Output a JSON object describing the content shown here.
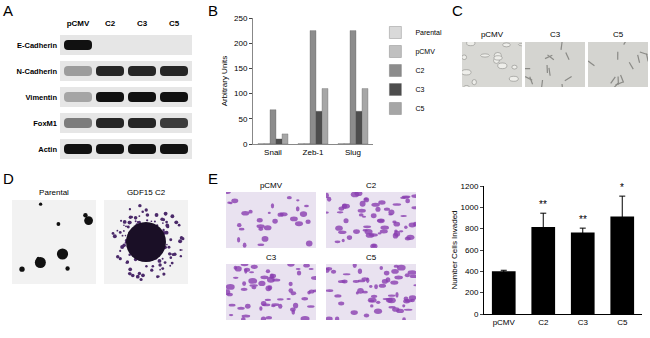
{
  "panel_labels": [
    "A",
    "B",
    "C",
    "D",
    "E"
  ],
  "blot": {
    "lanes": [
      "pCMV",
      "C2",
      "C3",
      "C5"
    ],
    "rows": [
      {
        "protein": "E-Cadherin",
        "signal": [
          1,
          0,
          0,
          0
        ]
      },
      {
        "protein": "N-Cadherin",
        "signal": [
          0.35,
          0.9,
          0.9,
          0.9
        ]
      },
      {
        "protein": "Vimentin",
        "signal": [
          0.3,
          1,
          1,
          1
        ]
      },
      {
        "protein": "FoxM1",
        "signal": [
          0.5,
          0.9,
          0.9,
          0.8
        ]
      },
      {
        "protein": "Actin",
        "signal": [
          1,
          1,
          1,
          1
        ]
      }
    ]
  },
  "chart_data": [
    {
      "type": "bar",
      "categories": [
        "Snail",
        "Zeb-1",
        "Slug"
      ],
      "y_label": "Arbitrary Units",
      "ylim": [
        0,
        250
      ],
      "yticks": [
        0,
        50,
        100,
        150,
        200,
        250
      ],
      "grid": false,
      "legend": "right",
      "series": [
        {
          "name": "Parental",
          "color": "#d9d9d9",
          "values": [
            1,
            1,
            1
          ]
        },
        {
          "name": "pCMV",
          "color": "#c0c0c0",
          "values": [
            1,
            1,
            1
          ]
        },
        {
          "name": "C2",
          "color": "#8c8c8c",
          "values": [
            68,
            225,
            225
          ]
        },
        {
          "name": "C3",
          "color": "#4d4d4d",
          "values": [
            10,
            65,
            65
          ]
        },
        {
          "name": "C5",
          "color": "#a6a6a6",
          "values": [
            20,
            110,
            110
          ]
        }
      ]
    },
    {
      "type": "bar",
      "categories": [
        "pCMV",
        "C2",
        "C3",
        "C5"
      ],
      "values": [
        400,
        815,
        765,
        915
      ],
      "errors": [
        10,
        130,
        40,
        190
      ],
      "significance": [
        null,
        "**",
        "**",
        "*"
      ],
      "color": "#000000",
      "y_label": "Number Cells Invaded",
      "ylim": [
        0,
        1200
      ],
      "yticks": [
        0,
        200,
        400,
        600,
        800,
        1000,
        1200
      ],
      "grid": false
    }
  ],
  "micrographs": {
    "C": [
      "pCMV",
      "C3",
      "C5"
    ],
    "D": [
      "Parental",
      "GDF15 C2"
    ],
    "E": [
      "pCMV",
      "C2",
      "C3",
      "C5"
    ]
  }
}
